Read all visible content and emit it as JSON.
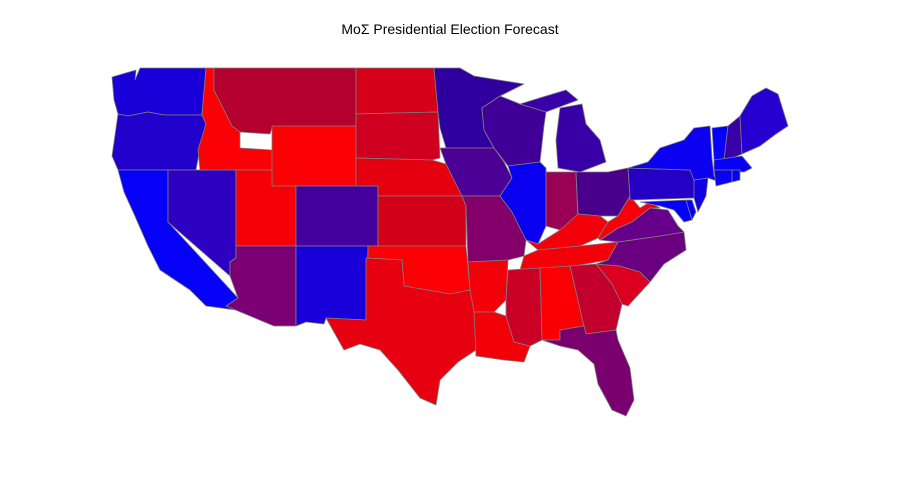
{
  "title": "MoΣ Presidential Election Forecast",
  "states": [
    {
      "id": "WA",
      "color": "#1a00d8"
    },
    {
      "id": "OR",
      "color": "#2200cc"
    },
    {
      "id": "CA",
      "color": "#0500f8"
    },
    {
      "id": "NV",
      "color": "#2e00c2"
    },
    {
      "id": "ID",
      "color": "#fb0004"
    },
    {
      "id": "MT",
      "color": "#b4002e"
    },
    {
      "id": "WY",
      "color": "#fb0004"
    },
    {
      "id": "UT",
      "color": "#f50007"
    },
    {
      "id": "AZ",
      "color": "#7a0073"
    },
    {
      "id": "CO",
      "color": "#44009c"
    },
    {
      "id": "NM",
      "color": "#1a00d8"
    },
    {
      "id": "ND",
      "color": "#d7001a"
    },
    {
      "id": "SD",
      "color": "#cf001f"
    },
    {
      "id": "NE",
      "color": "#e4000f"
    },
    {
      "id": "KS",
      "color": "#d30019"
    },
    {
      "id": "OK",
      "color": "#fb0004"
    },
    {
      "id": "TX",
      "color": "#e70010"
    },
    {
      "id": "MN",
      "color": "#30009f"
    },
    {
      "id": "IA",
      "color": "#4c0095"
    },
    {
      "id": "MO",
      "color": "#83006a"
    },
    {
      "id": "AR",
      "color": "#f3000a"
    },
    {
      "id": "LA",
      "color": "#f10009"
    },
    {
      "id": "WI",
      "color": "#400098"
    },
    {
      "id": "IL",
      "color": "#0a00f0"
    },
    {
      "id": "MI",
      "color": "#3a00a8"
    },
    {
      "id": "IN",
      "color": "#9a0054"
    },
    {
      "id": "OH",
      "color": "#48008c"
    },
    {
      "id": "KY",
      "color": "#f4000a"
    },
    {
      "id": "TN",
      "color": "#f4000a"
    },
    {
      "id": "MS",
      "color": "#cb0026"
    },
    {
      "id": "AL",
      "color": "#fa0005"
    },
    {
      "id": "GA",
      "color": "#c3002d"
    },
    {
      "id": "FL",
      "color": "#7a0070"
    },
    {
      "id": "SC",
      "color": "#dc0020"
    },
    {
      "id": "NC",
      "color": "#6a0080"
    },
    {
      "id": "VA",
      "color": "#66008a"
    },
    {
      "id": "WV",
      "color": "#f6000a"
    },
    {
      "id": "PA",
      "color": "#2400c4"
    },
    {
      "id": "NY",
      "color": "#0b00ef"
    },
    {
      "id": "VT",
      "color": "#0500fb"
    },
    {
      "id": "NH",
      "color": "#3a00a8"
    },
    {
      "id": "ME",
      "color": "#2500d0"
    },
    {
      "id": "MA",
      "color": "#0600f8"
    },
    {
      "id": "CT",
      "color": "#0d00ee"
    },
    {
      "id": "RI",
      "color": "#0400fb"
    },
    {
      "id": "NJ",
      "color": "#1200e4"
    },
    {
      "id": "DE",
      "color": "#0800f4"
    },
    {
      "id": "MD",
      "color": "#0400fa"
    }
  ]
}
